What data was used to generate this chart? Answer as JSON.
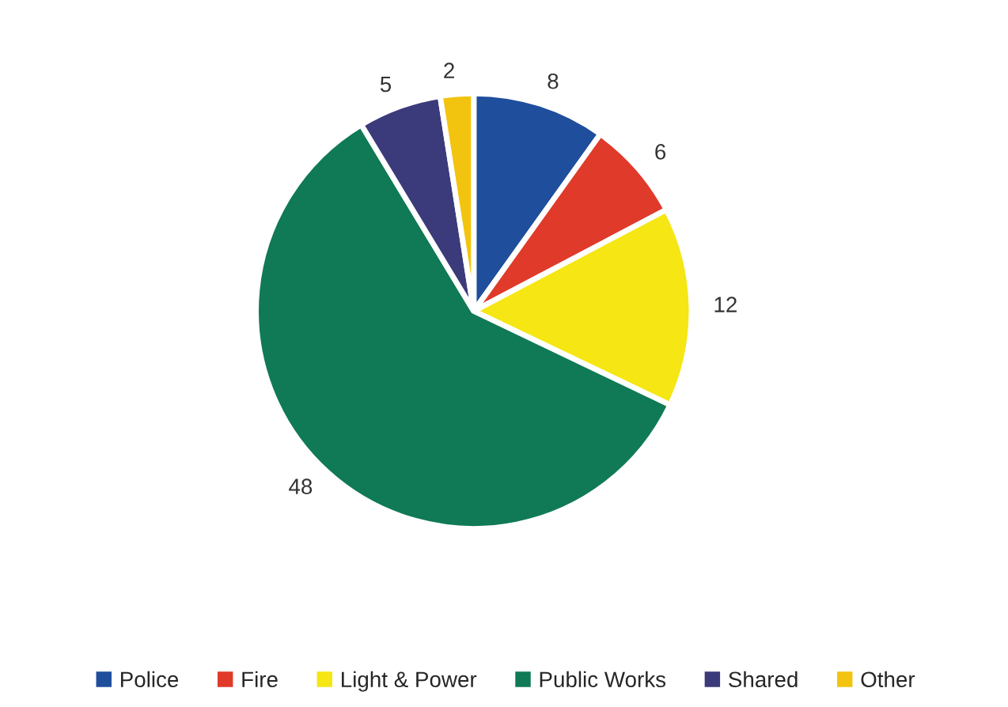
{
  "chart_data": {
    "type": "pie",
    "categories": [
      "Police",
      "Fire",
      "Light & Power",
      "Public Works",
      "Shared",
      "Other"
    ],
    "values": [
      8,
      6,
      12,
      48,
      5,
      2
    ],
    "colors": [
      "#1f4e9c",
      "#e03a2a",
      "#f5e614",
      "#0f7a55",
      "#3b3a7a",
      "#f2c40f"
    ],
    "data_labels": true,
    "legend": "bottom"
  }
}
